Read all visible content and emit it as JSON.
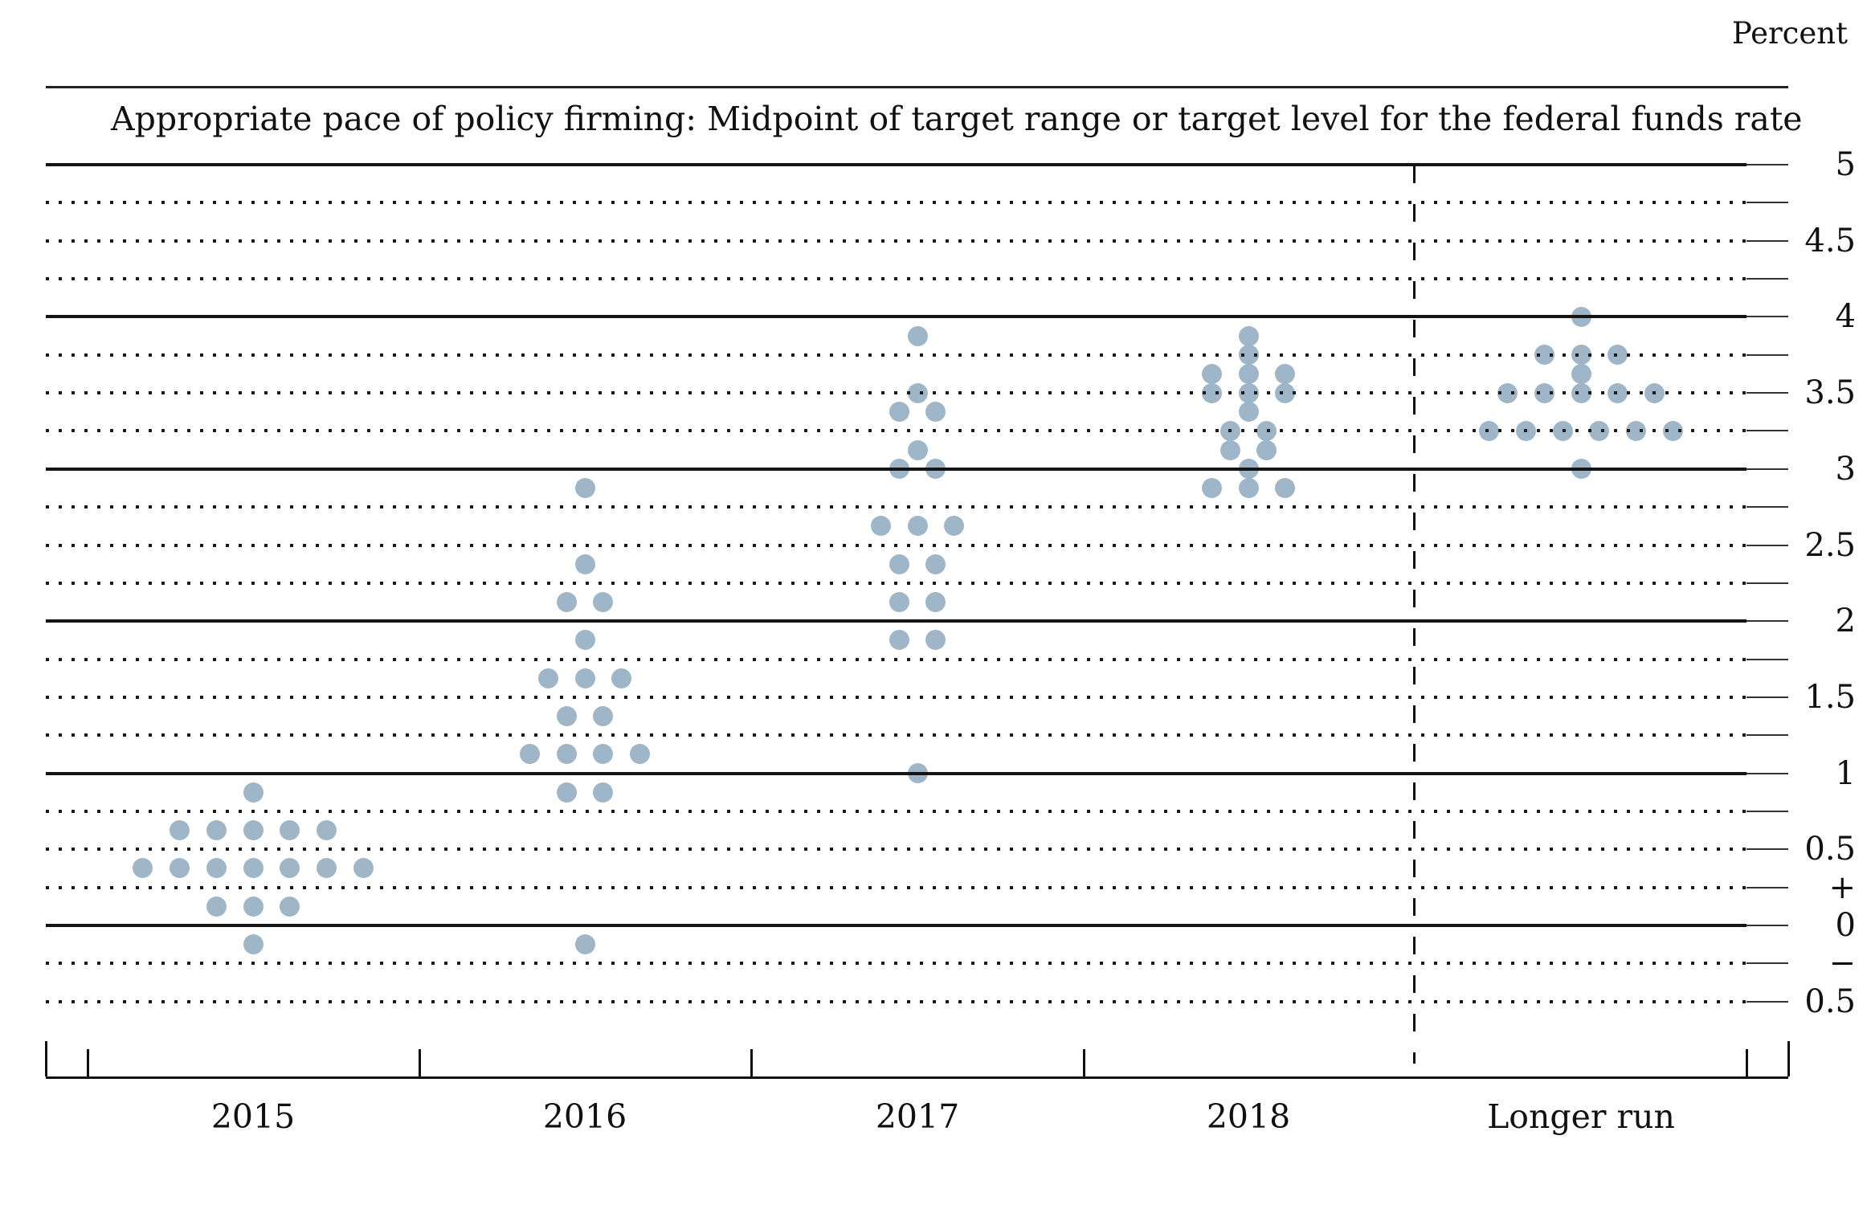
{
  "header": {
    "percent_label": "Percent"
  },
  "title": "Appropriate pace of policy firming: Midpoint of target range or target level for the federal funds rate",
  "chart_data": {
    "type": "scatter",
    "subtype": "fomc-dot-plot",
    "title": "Appropriate pace of policy firming: Midpoint of target range or target level for the federal funds rate",
    "unit_label": "Percent",
    "grid": "solid lines at integers, dotted lines at quarter-point increments",
    "legend_position": "none",
    "dot_color": "#9fb6c8",
    "categories": [
      "2015",
      "2016",
      "2017",
      "2018",
      "Longer run"
    ],
    "separator_after_category": "2018",
    "y_axis": {
      "min": -0.5,
      "max": 5,
      "grid_step": 0.25,
      "solid_line_values": [
        5,
        4,
        3,
        2,
        1,
        0
      ],
      "tick_labels": [
        {
          "text": "5",
          "value": 5
        },
        {
          "text": "4.5",
          "value": 4.5
        },
        {
          "text": "4",
          "value": 4
        },
        {
          "text": "3.5",
          "value": 3.5
        },
        {
          "text": "3",
          "value": 3
        },
        {
          "text": "2.5",
          "value": 2.5
        },
        {
          "text": "2",
          "value": 2
        },
        {
          "text": "1.5",
          "value": 1.5
        },
        {
          "text": "1",
          "value": 1
        },
        {
          "text": "0.5",
          "value": 0.5
        },
        {
          "text": "+",
          "value": 0.25
        },
        {
          "text": "0",
          "value": 0
        },
        {
          "text": "−",
          "value": -0.25
        },
        {
          "text": "0.5",
          "value": -0.5
        }
      ]
    },
    "series": [
      {
        "category": "2015",
        "dots": [
          {
            "rate": 0.875,
            "count": 1
          },
          {
            "rate": 0.625,
            "count": 5
          },
          {
            "rate": 0.375,
            "count": 7
          },
          {
            "rate": 0.125,
            "count": 3
          },
          {
            "rate": -0.125,
            "count": 1
          }
        ]
      },
      {
        "category": "2016",
        "dots": [
          {
            "rate": 2.875,
            "count": 1
          },
          {
            "rate": 2.375,
            "count": 1
          },
          {
            "rate": 2.125,
            "count": 2
          },
          {
            "rate": 1.875,
            "count": 1
          },
          {
            "rate": 1.625,
            "count": 3
          },
          {
            "rate": 1.375,
            "count": 2
          },
          {
            "rate": 1.125,
            "count": 4
          },
          {
            "rate": 0.875,
            "count": 2
          },
          {
            "rate": -0.125,
            "count": 1
          }
        ]
      },
      {
        "category": "2017",
        "dots": [
          {
            "rate": 3.875,
            "count": 1
          },
          {
            "rate": 3.5,
            "count": 1
          },
          {
            "rate": 3.375,
            "count": 2
          },
          {
            "rate": 3.125,
            "count": 1
          },
          {
            "rate": 3.0,
            "count": 2
          },
          {
            "rate": 2.625,
            "count": 3
          },
          {
            "rate": 2.375,
            "count": 2
          },
          {
            "rate": 2.125,
            "count": 2
          },
          {
            "rate": 1.875,
            "count": 2
          },
          {
            "rate": 1.0,
            "count": 1
          }
        ]
      },
      {
        "category": "2018",
        "dots": [
          {
            "rate": 3.875,
            "count": 1
          },
          {
            "rate": 3.75,
            "count": 1
          },
          {
            "rate": 3.625,
            "count": 3
          },
          {
            "rate": 3.5,
            "count": 3
          },
          {
            "rate": 3.375,
            "count": 1
          },
          {
            "rate": 3.25,
            "count": 2
          },
          {
            "rate": 3.125,
            "count": 2
          },
          {
            "rate": 3.0,
            "count": 1
          },
          {
            "rate": 2.875,
            "count": 3
          }
        ]
      },
      {
        "category": "Longer run",
        "dots": [
          {
            "rate": 4.0,
            "count": 1
          },
          {
            "rate": 3.75,
            "count": 3
          },
          {
            "rate": 3.625,
            "count": 1
          },
          {
            "rate": 3.5,
            "count": 5
          },
          {
            "rate": 3.25,
            "count": 6
          },
          {
            "rate": 3.0,
            "count": 1
          }
        ]
      }
    ]
  }
}
